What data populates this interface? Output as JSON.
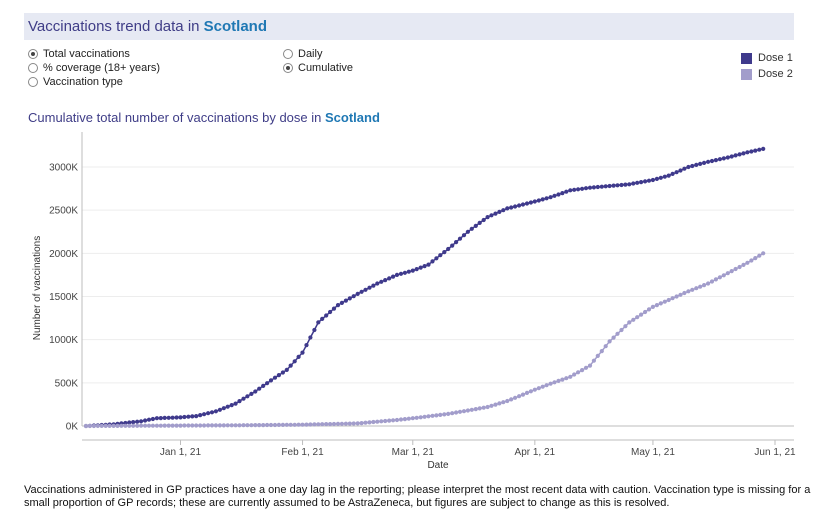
{
  "header": {
    "title_prefix": "Vaccinations trend data in",
    "location": "Scotland"
  },
  "options": {
    "measure": [
      {
        "label": "Total vaccinations",
        "checked": true
      },
      {
        "label": "% coverage (18+ years)",
        "checked": false
      },
      {
        "label": "Vaccination type",
        "checked": false
      }
    ],
    "mode": [
      {
        "label": "Daily",
        "checked": false
      },
      {
        "label": "Cumulative",
        "checked": true
      }
    ]
  },
  "legend": [
    {
      "label": "Dose 1",
      "color": "#3f3a8c"
    },
    {
      "label": "Dose 2",
      "color": "#a29dcb"
    }
  ],
  "chart_title": {
    "prefix": "Cumulative total number of vaccinations by dose in",
    "location": "Scotland"
  },
  "footnote": "Vaccinations administered in GP practices have a one day lag in the reporting; please interpret the most recent data with caution. Vaccination type is missing for a small proportion of GP records; these are currently assumed to be AstraZeneca, but figures are subject to change as this is resolved.",
  "chart_data": {
    "type": "line",
    "title": "Cumulative total number of vaccinations by dose in Scotland",
    "xlabel": "Date",
    "ylabel": "Number of vaccinations",
    "x_ticks": [
      "Jan 1, 21",
      "Feb 1, 21",
      "Mar 1, 21",
      "Apr 1, 21",
      "May 1, 21",
      "Jun 1, 21"
    ],
    "y_ticks": [
      "0K",
      "500K",
      "1000K",
      "1500K",
      "2000K",
      "2500K",
      "3000K"
    ],
    "ylim": [
      0,
      3300000
    ],
    "x_range": [
      "2020-12-08",
      "2021-06-01"
    ],
    "grid": "horizontal",
    "legend_position": "top-right",
    "series": [
      {
        "name": "Dose 1",
        "color": "#3f3a8c",
        "points": [
          [
            "2020-12-08",
            0
          ],
          [
            "2020-12-15",
            20000
          ],
          [
            "2020-12-22",
            55000
          ],
          [
            "2020-12-26",
            90000
          ],
          [
            "2021-01-01",
            100000
          ],
          [
            "2021-01-05",
            115000
          ],
          [
            "2021-01-10",
            170000
          ],
          [
            "2021-01-15",
            260000
          ],
          [
            "2021-01-20",
            400000
          ],
          [
            "2021-01-25",
            560000
          ],
          [
            "2021-01-28",
            650000
          ],
          [
            "2021-02-01",
            850000
          ],
          [
            "2021-02-05",
            1200000
          ],
          [
            "2021-02-10",
            1400000
          ],
          [
            "2021-02-15",
            1530000
          ],
          [
            "2021-02-20",
            1650000
          ],
          [
            "2021-02-25",
            1750000
          ],
          [
            "2021-03-01",
            1800000
          ],
          [
            "2021-03-05",
            1870000
          ],
          [
            "2021-03-10",
            2050000
          ],
          [
            "2021-03-15",
            2250000
          ],
          [
            "2021-03-20",
            2420000
          ],
          [
            "2021-03-25",
            2520000
          ],
          [
            "2021-04-01",
            2600000
          ],
          [
            "2021-04-05",
            2650000
          ],
          [
            "2021-04-10",
            2730000
          ],
          [
            "2021-04-15",
            2760000
          ],
          [
            "2021-04-20",
            2780000
          ],
          [
            "2021-04-25",
            2800000
          ],
          [
            "2021-05-01",
            2850000
          ],
          [
            "2021-05-05",
            2900000
          ],
          [
            "2021-05-10",
            3000000
          ],
          [
            "2021-05-15",
            3060000
          ],
          [
            "2021-05-20",
            3110000
          ],
          [
            "2021-05-25",
            3170000
          ],
          [
            "2021-05-29",
            3210000
          ]
        ]
      },
      {
        "name": "Dose 2",
        "color": "#a29dcb",
        "points": [
          [
            "2020-12-08",
            0
          ],
          [
            "2021-01-01",
            5000
          ],
          [
            "2021-01-15",
            8000
          ],
          [
            "2021-02-01",
            15000
          ],
          [
            "2021-02-15",
            30000
          ],
          [
            "2021-02-25",
            70000
          ],
          [
            "2021-03-01",
            90000
          ],
          [
            "2021-03-10",
            140000
          ],
          [
            "2021-03-20",
            220000
          ],
          [
            "2021-03-25",
            290000
          ],
          [
            "2021-04-01",
            420000
          ],
          [
            "2021-04-05",
            490000
          ],
          [
            "2021-04-10",
            570000
          ],
          [
            "2021-04-15",
            700000
          ],
          [
            "2021-04-20",
            980000
          ],
          [
            "2021-04-25",
            1200000
          ],
          [
            "2021-05-01",
            1380000
          ],
          [
            "2021-05-05",
            1460000
          ],
          [
            "2021-05-10",
            1560000
          ],
          [
            "2021-05-15",
            1650000
          ],
          [
            "2021-05-20",
            1770000
          ],
          [
            "2021-05-25",
            1890000
          ],
          [
            "2021-05-29",
            2000000
          ]
        ]
      }
    ]
  }
}
